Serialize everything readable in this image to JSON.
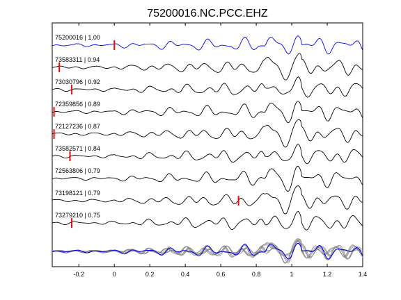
{
  "chart_data": {
    "type": "line",
    "title": "75200016.NC.PCC.EHZ",
    "xlim": [
      -0.35,
      1.4
    ],
    "x_ticks": [
      -0.2,
      0,
      0.2,
      0.4,
      0.6,
      0.8,
      1,
      1.2,
      1.4
    ],
    "x_tick_labels": [
      "-0.2",
      "0",
      "0.2",
      "0.4",
      "0.6",
      "0.8",
      "1",
      "1.2",
      "1.4"
    ],
    "traces": [
      {
        "label": "75200016 | 1.00",
        "pick": 0.0,
        "color": "#0000ff"
      },
      {
        "label": "73583311 | 0.94",
        "pick": -0.31,
        "color": "#000000"
      },
      {
        "label": "73030796 | 0.92",
        "pick": -0.24,
        "color": "#000000"
      },
      {
        "label": "72359856 | 0.89",
        "pick": -0.34,
        "color": "#000000"
      },
      {
        "label": "72127236 | 0.87",
        "pick": -0.34,
        "color": "#000000"
      },
      {
        "label": "73582571 | 0.84",
        "pick": -0.25,
        "color": "#000000"
      },
      {
        "label": "72563806 | 0.79",
        "pick": null,
        "color": "#000000"
      },
      {
        "label": "73198121 | 0.79",
        "pick": 0.7,
        "color": "#000000"
      },
      {
        "label": "73279210 | 0.75",
        "pick": -0.24,
        "color": "#000000"
      }
    ],
    "stack": {
      "reference_color": "#0000ff",
      "others_color": "#8c8c8c"
    },
    "pick_color": "#ff0000",
    "grid": false
  }
}
